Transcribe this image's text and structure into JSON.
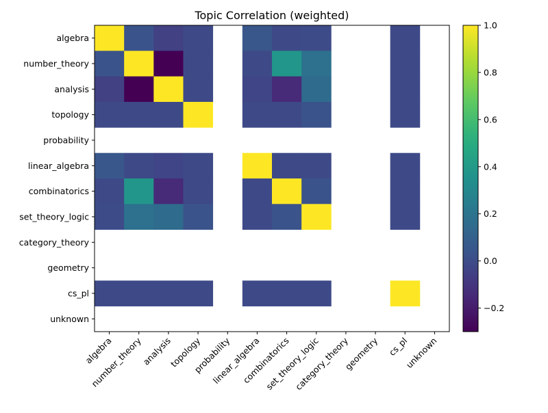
{
  "chart_data": {
    "type": "heatmap",
    "title": "Topic Correlation (weighted)",
    "xlabel": "",
    "ylabel": "",
    "labels": [
      "algebra",
      "number_theory",
      "analysis",
      "topology",
      "probability",
      "linear_algebra",
      "combinatorics",
      "set_theory_logic",
      "category_theory",
      "geometry",
      "cs_pl",
      "unknown"
    ],
    "matrix": [
      [
        1.0,
        0.03,
        -0.05,
        -0.01,
        null,
        0.05,
        -0.01,
        0.0,
        null,
        null,
        -0.01,
        null
      ],
      [
        0.03,
        1.0,
        -0.3,
        -0.01,
        null,
        -0.01,
        0.38,
        0.18,
        null,
        null,
        -0.01,
        null
      ],
      [
        -0.05,
        -0.3,
        1.0,
        -0.01,
        null,
        -0.03,
        -0.15,
        0.15,
        null,
        null,
        -0.01,
        null
      ],
      [
        -0.01,
        -0.01,
        -0.01,
        1.0,
        null,
        -0.01,
        -0.01,
        0.03,
        null,
        null,
        -0.01,
        null
      ],
      [
        null,
        null,
        null,
        null,
        null,
        null,
        null,
        null,
        null,
        null,
        null,
        null
      ],
      [
        0.05,
        -0.01,
        -0.03,
        -0.01,
        null,
        1.0,
        -0.01,
        -0.01,
        null,
        null,
        -0.01,
        null
      ],
      [
        -0.01,
        0.38,
        -0.15,
        -0.01,
        null,
        -0.01,
        1.0,
        0.03,
        null,
        null,
        -0.01,
        null
      ],
      [
        0.0,
        0.18,
        0.15,
        0.03,
        null,
        -0.01,
        0.03,
        1.0,
        null,
        null,
        -0.01,
        null
      ],
      [
        null,
        null,
        null,
        null,
        null,
        null,
        null,
        null,
        null,
        null,
        null,
        null
      ],
      [
        null,
        null,
        null,
        null,
        null,
        null,
        null,
        null,
        null,
        null,
        null,
        null
      ],
      [
        -0.01,
        -0.01,
        -0.01,
        -0.01,
        null,
        -0.01,
        -0.01,
        -0.01,
        null,
        null,
        1.0,
        null
      ],
      [
        null,
        null,
        null,
        null,
        null,
        null,
        null,
        null,
        null,
        null,
        null,
        null
      ]
    ],
    "colormap": "viridis",
    "vmin": -0.3,
    "vmax": 1.0,
    "colorbar_ticks": [
      -0.2,
      0.0,
      0.2,
      0.4,
      0.6,
      0.8,
      1.0
    ],
    "colorbar_tick_labels": [
      "−0.2",
      "0.0",
      "0.2",
      "0.4",
      "0.6",
      "0.8",
      "1.0"
    ],
    "grid": false
  }
}
